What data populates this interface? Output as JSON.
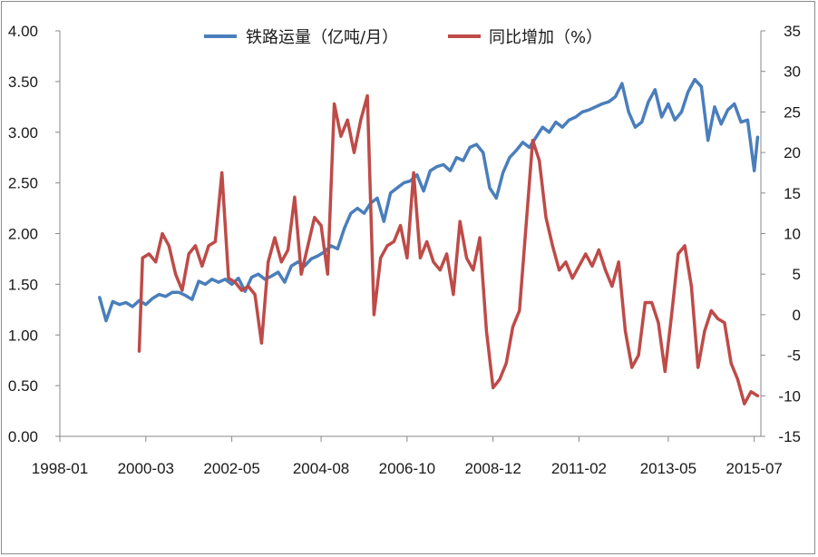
{
  "chart_data": {
    "type": "line",
    "title": "",
    "xlabel": "",
    "ylabel": "",
    "y2label": "",
    "grid": false,
    "legend_position": "top",
    "x_range": [
      "1998-01",
      "2015-09"
    ],
    "x_ticks": [
      "1998-01",
      "2000-03",
      "2002-05",
      "2004-08",
      "2006-10",
      "2008-12",
      "2011-02",
      "2013-05",
      "2015-07"
    ],
    "y_left": {
      "min": 0,
      "max": 4,
      "step": 0.5,
      "ticks": [
        "0.00",
        "0.50",
        "1.00",
        "1.50",
        "2.00",
        "2.50",
        "3.00",
        "3.50",
        "4.00"
      ]
    },
    "y_right": {
      "min": -15,
      "max": 35,
      "step": 5,
      "ticks": [
        "-15",
        "-10",
        "-5",
        "0",
        "5",
        "10",
        "15",
        "20",
        "25",
        "30",
        "35"
      ]
    },
    "series": [
      {
        "name": "铁路运量（亿吨/月）",
        "axis": "left",
        "color": "#4a7ebb",
        "points": [
          [
            "1999-01",
            1.37
          ],
          [
            "1999-03",
            1.14
          ],
          [
            "1999-05",
            1.33
          ],
          [
            "1999-07",
            1.3
          ],
          [
            "1999-09",
            1.32
          ],
          [
            "1999-11",
            1.28
          ],
          [
            "2000-01",
            1.34
          ],
          [
            "2000-03",
            1.3
          ],
          [
            "2000-05",
            1.36
          ],
          [
            "2000-07",
            1.4
          ],
          [
            "2000-09",
            1.38
          ],
          [
            "2000-11",
            1.42
          ],
          [
            "2001-01",
            1.42
          ],
          [
            "2001-03",
            1.39
          ],
          [
            "2001-05",
            1.35
          ],
          [
            "2001-07",
            1.53
          ],
          [
            "2001-09",
            1.5
          ],
          [
            "2001-11",
            1.55
          ],
          [
            "2002-01",
            1.52
          ],
          [
            "2002-03",
            1.55
          ],
          [
            "2002-05",
            1.5
          ],
          [
            "2002-07",
            1.56
          ],
          [
            "2002-09",
            1.43
          ],
          [
            "2002-11",
            1.57
          ],
          [
            "2003-01",
            1.6
          ],
          [
            "2003-03",
            1.55
          ],
          [
            "2003-05",
            1.58
          ],
          [
            "2003-07",
            1.62
          ],
          [
            "2003-09",
            1.52
          ],
          [
            "2003-11",
            1.68
          ],
          [
            "2004-01",
            1.72
          ],
          [
            "2004-03",
            1.68
          ],
          [
            "2004-05",
            1.75
          ],
          [
            "2004-07",
            1.78
          ],
          [
            "2004-09",
            1.82
          ],
          [
            "2004-11",
            1.88
          ],
          [
            "2005-01",
            1.85
          ],
          [
            "2005-03",
            2.05
          ],
          [
            "2005-05",
            2.2
          ],
          [
            "2005-07",
            2.25
          ],
          [
            "2005-09",
            2.2
          ],
          [
            "2005-11",
            2.3
          ],
          [
            "2006-01",
            2.35
          ],
          [
            "2006-03",
            2.12
          ],
          [
            "2006-05",
            2.4
          ],
          [
            "2006-07",
            2.45
          ],
          [
            "2006-09",
            2.5
          ],
          [
            "2006-11",
            2.52
          ],
          [
            "2007-01",
            2.58
          ],
          [
            "2007-03",
            2.42
          ],
          [
            "2007-05",
            2.62
          ],
          [
            "2007-07",
            2.66
          ],
          [
            "2007-09",
            2.68
          ],
          [
            "2007-11",
            2.62
          ],
          [
            "2008-01",
            2.75
          ],
          [
            "2008-03",
            2.72
          ],
          [
            "2008-05",
            2.85
          ],
          [
            "2008-07",
            2.88
          ],
          [
            "2008-09",
            2.8
          ],
          [
            "2008-11",
            2.45
          ],
          [
            "2009-01",
            2.35
          ],
          [
            "2009-03",
            2.6
          ],
          [
            "2009-05",
            2.75
          ],
          [
            "2009-07",
            2.82
          ],
          [
            "2009-09",
            2.9
          ],
          [
            "2009-11",
            2.85
          ],
          [
            "2010-01",
            2.95
          ],
          [
            "2010-03",
            3.05
          ],
          [
            "2010-05",
            3.0
          ],
          [
            "2010-07",
            3.1
          ],
          [
            "2010-09",
            3.05
          ],
          [
            "2010-11",
            3.12
          ],
          [
            "2011-01",
            3.15
          ],
          [
            "2011-03",
            3.2
          ],
          [
            "2011-05",
            3.22
          ],
          [
            "2011-07",
            3.25
          ],
          [
            "2011-09",
            3.28
          ],
          [
            "2011-11",
            3.3
          ],
          [
            "2012-01",
            3.35
          ],
          [
            "2012-03",
            3.48
          ],
          [
            "2012-05",
            3.2
          ],
          [
            "2012-07",
            3.05
          ],
          [
            "2012-09",
            3.1
          ],
          [
            "2012-11",
            3.3
          ],
          [
            "2013-01",
            3.42
          ],
          [
            "2013-03",
            3.15
          ],
          [
            "2013-05",
            3.28
          ],
          [
            "2013-07",
            3.12
          ],
          [
            "2013-09",
            3.2
          ],
          [
            "2013-11",
            3.4
          ],
          [
            "2014-01",
            3.52
          ],
          [
            "2014-03",
            3.45
          ],
          [
            "2014-05",
            2.92
          ],
          [
            "2014-07",
            3.25
          ],
          [
            "2014-09",
            3.08
          ],
          [
            "2014-11",
            3.22
          ],
          [
            "2015-01",
            3.28
          ],
          [
            "2015-03",
            3.1
          ],
          [
            "2015-05",
            3.12
          ],
          [
            "2015-07",
            2.62
          ],
          [
            "2015-08",
            2.95
          ]
        ]
      },
      {
        "name": "同比增加（%）",
        "axis": "right",
        "color": "#be4b48",
        "points": [
          [
            "2000-01",
            -4.5
          ],
          [
            "2000-02",
            7.0
          ],
          [
            "2000-04",
            7.5
          ],
          [
            "2000-06",
            6.5
          ],
          [
            "2000-08",
            10.0
          ],
          [
            "2000-10",
            8.5
          ],
          [
            "2000-12",
            5.0
          ],
          [
            "2001-02",
            3.0
          ],
          [
            "2001-04",
            7.5
          ],
          [
            "2001-06",
            8.5
          ],
          [
            "2001-08",
            6.0
          ],
          [
            "2001-10",
            8.5
          ],
          [
            "2001-12",
            9.0
          ],
          [
            "2002-02",
            17.5
          ],
          [
            "2002-04",
            4.5
          ],
          [
            "2002-06",
            4.0
          ],
          [
            "2002-08",
            3.0
          ],
          [
            "2002-10",
            3.5
          ],
          [
            "2002-12",
            2.5
          ],
          [
            "2003-02",
            -3.5
          ],
          [
            "2003-04",
            6.5
          ],
          [
            "2003-06",
            9.5
          ],
          [
            "2003-08",
            6.5
          ],
          [
            "2003-10",
            8.0
          ],
          [
            "2003-12",
            14.5
          ],
          [
            "2004-02",
            5.0
          ],
          [
            "2004-04",
            8.5
          ],
          [
            "2004-06",
            12.0
          ],
          [
            "2004-08",
            11.0
          ],
          [
            "2004-10",
            5.0
          ],
          [
            "2004-12",
            26.0
          ],
          [
            "2005-02",
            22.0
          ],
          [
            "2005-04",
            24.0
          ],
          [
            "2005-06",
            20.0
          ],
          [
            "2005-08",
            24.0
          ],
          [
            "2005-10",
            27.0
          ],
          [
            "2005-12",
            0.0
          ],
          [
            "2006-02",
            7.0
          ],
          [
            "2006-04",
            8.5
          ],
          [
            "2006-06",
            9.0
          ],
          [
            "2006-08",
            11.0
          ],
          [
            "2006-10",
            7.0
          ],
          [
            "2006-12",
            17.5
          ],
          [
            "2007-02",
            7.0
          ],
          [
            "2007-04",
            9.0
          ],
          [
            "2007-06",
            6.5
          ],
          [
            "2007-08",
            5.5
          ],
          [
            "2007-10",
            7.5
          ],
          [
            "2007-12",
            2.5
          ],
          [
            "2008-02",
            11.5
          ],
          [
            "2008-04",
            7.0
          ],
          [
            "2008-06",
            5.5
          ],
          [
            "2008-08",
            9.5
          ],
          [
            "2008-10",
            -2.0
          ],
          [
            "2008-12",
            -9.0
          ],
          [
            "2009-02",
            -8.0
          ],
          [
            "2009-04",
            -6.0
          ],
          [
            "2009-06",
            -1.5
          ],
          [
            "2009-08",
            0.5
          ],
          [
            "2009-10",
            11.0
          ],
          [
            "2009-12",
            21.5
          ],
          [
            "2010-02",
            19.0
          ],
          [
            "2010-04",
            12.0
          ],
          [
            "2010-06",
            8.5
          ],
          [
            "2010-08",
            5.5
          ],
          [
            "2010-10",
            6.5
          ],
          [
            "2010-12",
            4.5
          ],
          [
            "2011-02",
            6.0
          ],
          [
            "2011-04",
            7.5
          ],
          [
            "2011-06",
            6.0
          ],
          [
            "2011-08",
            8.0
          ],
          [
            "2011-10",
            5.5
          ],
          [
            "2011-12",
            3.5
          ],
          [
            "2012-02",
            6.5
          ],
          [
            "2012-04",
            -2.0
          ],
          [
            "2012-06",
            -6.5
          ],
          [
            "2012-08",
            -5.0
          ],
          [
            "2012-10",
            1.5
          ],
          [
            "2012-12",
            1.5
          ],
          [
            "2013-02",
            -1.0
          ],
          [
            "2013-04",
            -7.0
          ],
          [
            "2013-06",
            0.0
          ],
          [
            "2013-08",
            7.5
          ],
          [
            "2013-10",
            8.5
          ],
          [
            "2013-12",
            3.5
          ],
          [
            "2014-02",
            -6.5
          ],
          [
            "2014-04",
            -2.0
          ],
          [
            "2014-06",
            0.5
          ],
          [
            "2014-08",
            -0.5
          ],
          [
            "2014-10",
            -1.0
          ],
          [
            "2014-12",
            -6.0
          ],
          [
            "2015-02",
            -8.0
          ],
          [
            "2015-04",
            -11.0
          ],
          [
            "2015-06",
            -9.5
          ],
          [
            "2015-08",
            -10.0
          ]
        ]
      }
    ]
  }
}
